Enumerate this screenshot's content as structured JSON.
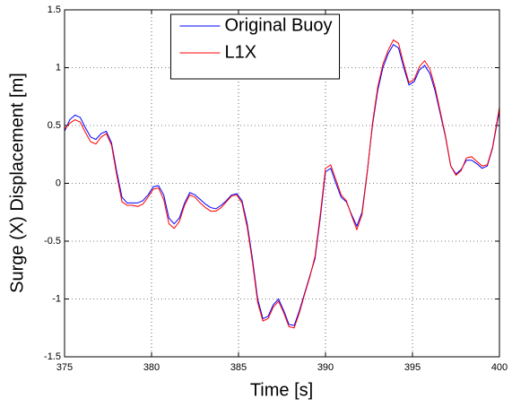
{
  "chart_data": {
    "type": "line",
    "xlabel": "Time [s]",
    "ylabel": "Surge (X) Displacement [m]",
    "x": [
      375,
      375.3,
      375.6,
      375.9,
      376.2,
      376.5,
      376.8,
      377.1,
      377.4,
      377.7,
      378,
      378.3,
      378.6,
      378.9,
      379.2,
      379.5,
      379.8,
      380.1,
      380.4,
      380.7,
      381,
      381.3,
      381.6,
      381.9,
      382.2,
      382.5,
      382.8,
      383.1,
      383.4,
      383.7,
      384,
      384.3,
      384.6,
      384.9,
      385.2,
      385.5,
      385.8,
      386.1,
      386.4,
      386.7,
      387,
      387.3,
      387.6,
      387.9,
      388.2,
      388.5,
      388.8,
      389.1,
      389.4,
      389.7,
      390,
      390.3,
      390.6,
      390.9,
      391.2,
      391.5,
      391.8,
      392.1,
      392.4,
      392.7,
      393,
      393.3,
      393.6,
      393.9,
      394.2,
      394.5,
      394.8,
      395.1,
      395.4,
      395.7,
      396,
      396.3,
      396.6,
      396.9,
      397.2,
      397.5,
      397.8,
      398.1,
      398.4,
      398.7,
      399,
      399.3,
      399.6,
      399.9,
      400
    ],
    "series": [
      {
        "name": "Original Buoy",
        "color": "#0000ff",
        "values": [
          0.45,
          0.55,
          0.59,
          0.57,
          0.48,
          0.4,
          0.38,
          0.43,
          0.45,
          0.35,
          0.1,
          -0.12,
          -0.17,
          -0.17,
          -0.17,
          -0.15,
          -0.1,
          -0.03,
          -0.02,
          -0.1,
          -0.3,
          -0.35,
          -0.3,
          -0.17,
          -0.08,
          -0.1,
          -0.14,
          -0.18,
          -0.21,
          -0.22,
          -0.19,
          -0.15,
          -0.1,
          -0.09,
          -0.15,
          -0.35,
          -0.65,
          -1.0,
          -1.17,
          -1.15,
          -1.05,
          -1.0,
          -1.1,
          -1.22,
          -1.23,
          -1.1,
          -0.95,
          -0.8,
          -0.65,
          -0.3,
          0.1,
          0.13,
          0.0,
          -0.12,
          -0.16,
          -0.27,
          -0.37,
          -0.25,
          0.1,
          0.5,
          0.8,
          1.0,
          1.12,
          1.2,
          1.17,
          1.0,
          0.85,
          0.88,
          0.98,
          1.02,
          0.95,
          0.8,
          0.6,
          0.4,
          0.15,
          0.08,
          0.12,
          0.2,
          0.2,
          0.17,
          0.13,
          0.15,
          0.3,
          0.55,
          0.62
        ]
      },
      {
        "name": "L1X",
        "color": "#ff0000",
        "values": [
          0.47,
          0.52,
          0.55,
          0.53,
          0.44,
          0.36,
          0.34,
          0.4,
          0.43,
          0.33,
          0.07,
          -0.16,
          -0.19,
          -0.19,
          -0.2,
          -0.18,
          -0.12,
          -0.05,
          -0.04,
          -0.14,
          -0.35,
          -0.39,
          -0.33,
          -0.19,
          -0.1,
          -0.12,
          -0.17,
          -0.21,
          -0.24,
          -0.24,
          -0.21,
          -0.16,
          -0.11,
          -0.1,
          -0.17,
          -0.38,
          -0.68,
          -1.03,
          -1.19,
          -1.17,
          -1.07,
          -1.02,
          -1.12,
          -1.24,
          -1.25,
          -1.12,
          -0.96,
          -0.81,
          -0.63,
          -0.27,
          0.13,
          0.16,
          0.03,
          -0.1,
          -0.15,
          -0.28,
          -0.4,
          -0.27,
          0.09,
          0.52,
          0.83,
          1.03,
          1.15,
          1.24,
          1.21,
          1.03,
          0.87,
          0.9,
          1.01,
          1.06,
          0.99,
          0.83,
          0.62,
          0.41,
          0.15,
          0.07,
          0.11,
          0.22,
          0.23,
          0.19,
          0.15,
          0.16,
          0.31,
          0.57,
          0.66
        ]
      }
    ],
    "xlim": [
      375,
      400
    ],
    "xticks": [
      375,
      380,
      385,
      390,
      395,
      400
    ],
    "ylim": [
      -1.5,
      1.5
    ],
    "yticks": [
      -1.5,
      -1,
      -0.5,
      0,
      0.5,
      1,
      1.5
    ],
    "grid": true,
    "legend": "upper center"
  }
}
